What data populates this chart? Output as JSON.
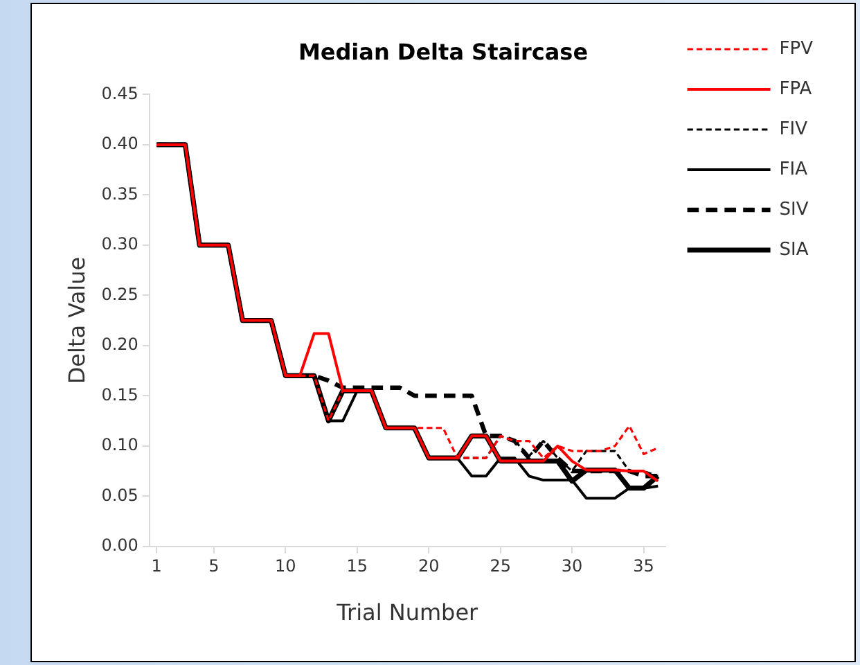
{
  "chart_data": {
    "type": "line",
    "title": "Median Delta Staircase",
    "xlabel": "Trial Number",
    "ylabel": "Delta Value",
    "x": [
      1,
      2,
      3,
      4,
      5,
      6,
      7,
      8,
      9,
      10,
      11,
      12,
      13,
      14,
      15,
      16,
      17,
      18,
      19,
      20,
      21,
      22,
      23,
      24,
      25,
      26,
      27,
      28,
      29,
      30,
      31,
      32,
      33,
      34,
      35,
      36
    ],
    "xlim": [
      0.5,
      36.5
    ],
    "xticks": [
      1,
      5,
      10,
      15,
      20,
      25,
      30,
      35
    ],
    "ylim": [
      0,
      0.45
    ],
    "yticks": [
      {
        "value": 0,
        "label": "0.00"
      },
      {
        "value": 0.05,
        "label": "0.05"
      },
      {
        "value": 0.1,
        "label": "0.10"
      },
      {
        "value": 0.15,
        "label": "0.15"
      },
      {
        "value": 0.2,
        "label": "0.20"
      },
      {
        "value": 0.25,
        "label": "0.25"
      },
      {
        "value": 0.3,
        "label": "0.30"
      },
      {
        "value": 0.35,
        "label": "0.35"
      },
      {
        "value": 0.4,
        "label": "0.40"
      },
      {
        "value": 0.45,
        "label": "0.45"
      }
    ],
    "grid": false,
    "legend": "top right",
    "marker": "none",
    "series": [
      {
        "name": "FPV",
        "color": "#ff0000",
        "line_style": "dashed",
        "values": [
          0.4,
          0.4,
          0.4,
          0.3,
          0.3,
          0.3,
          0.225,
          0.225,
          0.225,
          0.17,
          0.17,
          0.17,
          0.125,
          0.155,
          0.155,
          0.155,
          0.118,
          0.118,
          0.118,
          0.118,
          0.118,
          0.088,
          0.088,
          0.088,
          0.11,
          0.105,
          0.105,
          0.088,
          0.1,
          0.095,
          0.095,
          0.095,
          0.1,
          0.12,
          0.092,
          0.098
        ]
      },
      {
        "name": "FPA",
        "color": "#ff0000",
        "line_style": "solid",
        "values": [
          0.4,
          0.4,
          0.4,
          0.3,
          0.3,
          0.3,
          0.225,
          0.225,
          0.225,
          0.17,
          0.17,
          0.212,
          0.212,
          0.155,
          0.155,
          0.155,
          0.118,
          0.118,
          0.118,
          0.088,
          0.088,
          0.088,
          0.11,
          0.11,
          0.085,
          0.085,
          0.085,
          0.085,
          0.1,
          0.085,
          0.076,
          0.076,
          0.076,
          0.075,
          0.075,
          0.065
        ]
      },
      {
        "name": "FIV",
        "color": "#000000",
        "line_style": "dashed",
        "values": [
          0.4,
          0.4,
          0.4,
          0.3,
          0.3,
          0.3,
          0.225,
          0.225,
          0.225,
          0.17,
          0.17,
          0.17,
          0.125,
          0.155,
          0.155,
          0.155,
          0.118,
          0.118,
          0.118,
          0.088,
          0.088,
          0.088,
          0.088,
          0.088,
          0.11,
          0.105,
          0.09,
          0.105,
          0.088,
          0.075,
          0.095,
          0.095,
          0.095,
          0.075,
          0.075,
          0.07
        ]
      },
      {
        "name": "FIA",
        "color": "#000000",
        "line_style": "solid",
        "values": [
          0.4,
          0.4,
          0.4,
          0.3,
          0.3,
          0.3,
          0.225,
          0.225,
          0.225,
          0.17,
          0.17,
          0.17,
          0.125,
          0.125,
          0.155,
          0.155,
          0.118,
          0.118,
          0.118,
          0.088,
          0.088,
          0.088,
          0.07,
          0.07,
          0.088,
          0.088,
          0.07,
          0.066,
          0.066,
          0.066,
          0.048,
          0.048,
          0.048,
          0.058,
          0.058,
          0.06
        ]
      },
      {
        "name": "SIV",
        "color": "#000000",
        "line_style": "dashed",
        "values": [
          0.4,
          0.4,
          0.4,
          0.3,
          0.3,
          0.3,
          0.225,
          0.225,
          0.225,
          0.17,
          0.17,
          0.17,
          0.165,
          0.158,
          0.158,
          0.158,
          0.158,
          0.158,
          0.15,
          0.15,
          0.15,
          0.15,
          0.15,
          0.11,
          0.11,
          0.105,
          0.088,
          0.105,
          0.088,
          0.075,
          0.075,
          0.075,
          0.075,
          0.075,
          0.07,
          0.07
        ]
      },
      {
        "name": "SIA",
        "color": "#000000",
        "line_style": "solid",
        "values": [
          0.4,
          0.4,
          0.4,
          0.3,
          0.3,
          0.3,
          0.225,
          0.225,
          0.225,
          0.17,
          0.17,
          0.17,
          0.125,
          0.155,
          0.155,
          0.155,
          0.118,
          0.118,
          0.118,
          0.088,
          0.088,
          0.088,
          0.11,
          0.11,
          0.085,
          0.085,
          0.085,
          0.085,
          0.085,
          0.065,
          0.076,
          0.076,
          0.076,
          0.058,
          0.058,
          0.07
        ]
      }
    ]
  }
}
